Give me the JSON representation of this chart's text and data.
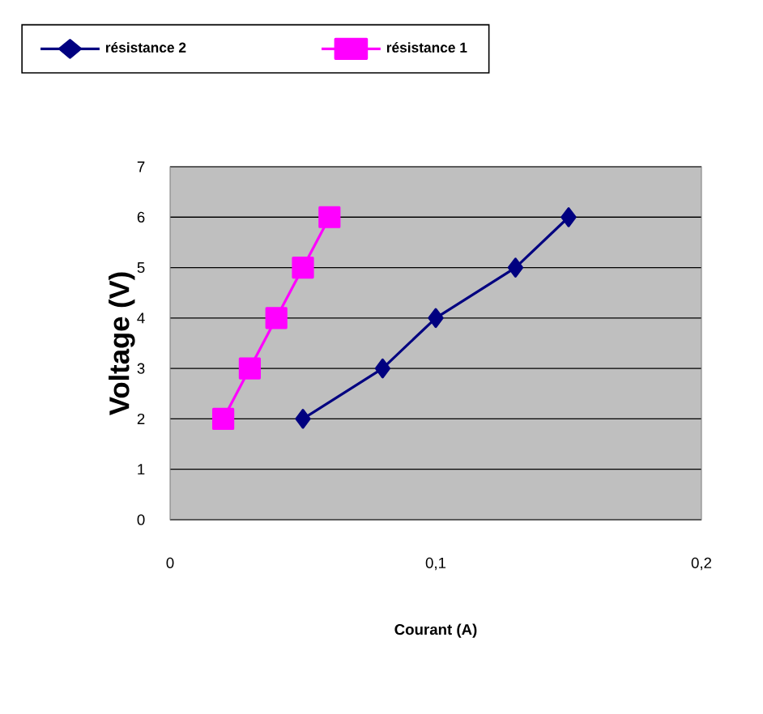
{
  "chart_data": {
    "type": "line",
    "xlabel": "Courant (A)",
    "ylabel": "Voltage (V)",
    "series": [
      {
        "name": "résistance 2",
        "color": "#000080",
        "marker": "diamond",
        "x": [
          0.05,
          0.08,
          0.1,
          0.13,
          0.15
        ],
        "values": [
          2,
          3,
          4,
          5,
          6
        ]
      },
      {
        "name": "résistance 1",
        "color": "#ff00ff",
        "marker": "square",
        "x": [
          0.02,
          0.03,
          0.04,
          0.05,
          0.06
        ],
        "values": [
          2,
          3,
          4,
          5,
          6
        ]
      }
    ],
    "xlim": [
      0,
      0.2
    ],
    "xticks": [
      {
        "value": 0,
        "label": "0"
      },
      {
        "value": 0.1,
        "label": "0,1"
      },
      {
        "value": 0.2,
        "label": "0,2"
      }
    ],
    "ylim": [
      0,
      7
    ],
    "yticks": [
      0,
      1,
      2,
      3,
      4,
      5,
      6,
      7
    ],
    "grid": "y",
    "legend": "top",
    "line_style": "solid"
  }
}
